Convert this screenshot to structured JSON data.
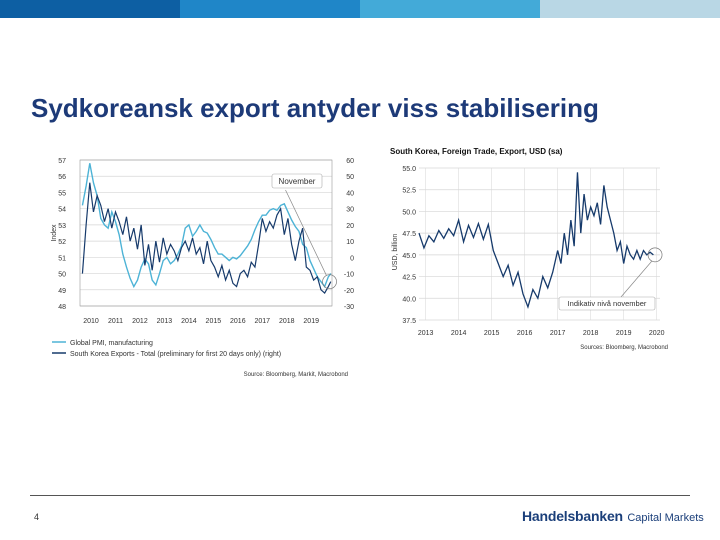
{
  "slide": {
    "title": "Sydkoreansk export antyder viss stabilisering",
    "page_number": "4",
    "logo_main": "Handelsbanken",
    "logo_sub": "Capital Markets",
    "top_band_colors": [
      "#0d5fa3",
      "#1f86c8",
      "#43aad8",
      "#b9d7e5"
    ]
  },
  "chart_data": [
    {
      "type": "line",
      "xlabel": "",
      "ylabel": "Index",
      "y2label": "",
      "x_ticks": [
        "2010",
        "2011",
        "2012",
        "2013",
        "2014",
        "2015",
        "2016",
        "2017",
        "2018",
        "2019"
      ],
      "xlim": [
        2009.6,
        2019.9
      ],
      "ylim": [
        48,
        57
      ],
      "y_ticks": [
        "57",
        "56",
        "55",
        "54",
        "53",
        "52",
        "51",
        "50",
        "49",
        "48"
      ],
      "y2lim": [
        -30,
        60
      ],
      "y2_ticks": [
        "60",
        "50",
        "40",
        "30",
        "20",
        "10",
        "0",
        "-10",
        "-20",
        "-30"
      ],
      "annotation": "November",
      "colors": {
        "pmi": "#4db3d6",
        "exports": "#163a6b",
        "grid": "#d6d6d6"
      },
      "series": [
        {
          "name": "Global PMI, manufacturing",
          "axis": "left",
          "x": [
            2009.7,
            2009.85,
            2010.0,
            2010.15,
            2010.3,
            2010.45,
            2010.6,
            2010.75,
            2010.9,
            2011.05,
            2011.2,
            2011.35,
            2011.5,
            2011.65,
            2011.8,
            2011.95,
            2012.1,
            2012.25,
            2012.4,
            2012.55,
            2012.7,
            2012.85,
            2013.0,
            2013.15,
            2013.3,
            2013.45,
            2013.6,
            2013.75,
            2013.9,
            2014.05,
            2014.2,
            2014.35,
            2014.5,
            2014.65,
            2014.8,
            2014.95,
            2015.1,
            2015.25,
            2015.4,
            2015.55,
            2015.7,
            2015.85,
            2016.0,
            2016.15,
            2016.3,
            2016.45,
            2016.6,
            2016.75,
            2016.9,
            2017.05,
            2017.2,
            2017.35,
            2017.5,
            2017.65,
            2017.8,
            2017.95,
            2018.1,
            2018.25,
            2018.4,
            2018.55,
            2018.7,
            2018.85,
            2019.0,
            2019.15,
            2019.3,
            2019.45,
            2019.6,
            2019.75,
            2019.85
          ],
          "values": [
            54.2,
            55.4,
            56.8,
            55.6,
            54.8,
            53.4,
            53.0,
            52.8,
            53.8,
            53.2,
            52.4,
            51.2,
            50.4,
            49.7,
            49.2,
            49.6,
            50.4,
            50.9,
            50.6,
            49.6,
            49.3,
            50.0,
            50.8,
            51.0,
            50.6,
            50.8,
            51.2,
            51.7,
            52.8,
            53.0,
            52.3,
            52.6,
            53.0,
            52.6,
            52.5,
            52.1,
            51.6,
            51.2,
            51.2,
            51.0,
            50.8,
            51.0,
            50.9,
            51.1,
            51.4,
            51.7,
            52.1,
            52.7,
            53.2,
            53.6,
            53.6,
            53.9,
            54.0,
            53.9,
            54.2,
            54.3,
            53.8,
            53.3,
            52.9,
            52.6,
            51.8,
            51.6,
            50.8,
            50.3,
            49.8,
            49.5,
            49.2,
            49.8,
            50.0
          ]
        },
        {
          "name": "South Korea Exports - Total (preliminary for first 20 days only) (right)",
          "axis": "right",
          "x": [
            2009.7,
            2009.85,
            2010.0,
            2010.15,
            2010.3,
            2010.45,
            2010.6,
            2010.75,
            2010.9,
            2011.05,
            2011.2,
            2011.35,
            2011.5,
            2011.65,
            2011.8,
            2011.95,
            2012.1,
            2012.25,
            2012.4,
            2012.55,
            2012.7,
            2012.85,
            2013.0,
            2013.15,
            2013.3,
            2013.45,
            2013.6,
            2013.75,
            2013.9,
            2014.05,
            2014.2,
            2014.35,
            2014.5,
            2014.65,
            2014.8,
            2014.95,
            2015.1,
            2015.25,
            2015.4,
            2015.55,
            2015.7,
            2015.85,
            2016.0,
            2016.15,
            2016.3,
            2016.45,
            2016.6,
            2016.75,
            2016.9,
            2017.05,
            2017.2,
            2017.35,
            2017.5,
            2017.65,
            2017.8,
            2017.95,
            2018.1,
            2018.25,
            2018.4,
            2018.55,
            2018.7,
            2018.85,
            2019.0,
            2019.15,
            2019.3,
            2019.45,
            2019.6,
            2019.75,
            2019.85
          ],
          "values": [
            -10,
            20,
            46,
            28,
            38,
            32,
            22,
            30,
            18,
            28,
            22,
            14,
            25,
            10,
            18,
            5,
            20,
            -5,
            8,
            -8,
            10,
            -3,
            12,
            2,
            8,
            4,
            -2,
            6,
            10,
            4,
            12,
            2,
            6,
            -4,
            10,
            -2,
            -6,
            -12,
            -5,
            -14,
            -8,
            -16,
            -18,
            -10,
            -8,
            -12,
            -3,
            -6,
            8,
            24,
            16,
            22,
            18,
            26,
            30,
            14,
            24,
            8,
            -2,
            10,
            18,
            -6,
            -8,
            -14,
            -12,
            -20,
            -22,
            -18,
            -15
          ]
        }
      ],
      "legend": "bottom",
      "source": "Source: Bloomberg, Markit, Macrobond"
    },
    {
      "type": "line",
      "title": "South Korea, Foreign Trade, Export, USD (sa)",
      "xlabel": "",
      "ylabel": "USD, billion",
      "x_ticks": [
        "2013",
        "2014",
        "2015",
        "2016",
        "2017",
        "2018",
        "2019",
        "2020"
      ],
      "xlim": [
        2012.8,
        2020.1
      ],
      "ylim": [
        37.5,
        55.0
      ],
      "y_ticks": [
        "55.0",
        "52.5",
        "50.0",
        "47.5",
        "45.0",
        "42.5",
        "40.0",
        "37.5"
      ],
      "annotation": "Indikativ nivå november",
      "colors": {
        "line": "#163a6b",
        "grid": "#d6d6d6"
      },
      "series": [
        {
          "name": "",
          "x": [
            2012.8,
            2012.95,
            2013.1,
            2013.25,
            2013.4,
            2013.55,
            2013.7,
            2013.85,
            2014.0,
            2014.15,
            2014.3,
            2014.45,
            2014.6,
            2014.75,
            2014.9,
            2015.05,
            2015.2,
            2015.35,
            2015.5,
            2015.65,
            2015.8,
            2015.95,
            2016.1,
            2016.25,
            2016.4,
            2016.55,
            2016.7,
            2016.85,
            2017.0,
            2017.1,
            2017.2,
            2017.3,
            2017.4,
            2017.5,
            2017.6,
            2017.7,
            2017.8,
            2017.9,
            2018.0,
            2018.1,
            2018.2,
            2018.3,
            2018.4,
            2018.5,
            2018.6,
            2018.7,
            2018.8,
            2018.9,
            2019.0,
            2019.1,
            2019.2,
            2019.3,
            2019.4,
            2019.5,
            2019.6,
            2019.7,
            2019.8,
            2019.9
          ],
          "values": [
            47.5,
            45.8,
            47.2,
            46.5,
            47.8,
            46.9,
            48.0,
            47.2,
            49.0,
            46.5,
            48.4,
            47.0,
            48.6,
            46.8,
            48.5,
            45.5,
            44.0,
            42.5,
            43.8,
            41.5,
            43.0,
            40.5,
            39.0,
            41.0,
            40.0,
            42.5,
            41.2,
            43.0,
            45.5,
            44.0,
            47.5,
            45.0,
            49.0,
            46.0,
            54.5,
            47.5,
            52.0,
            49.0,
            50.5,
            49.5,
            51.0,
            48.5,
            53.0,
            50.5,
            49.0,
            47.5,
            45.5,
            46.5,
            44.0,
            46.0,
            45.0,
            44.5,
            45.5,
            44.5,
            45.5,
            45.0,
            45.3,
            45.0
          ]
        }
      ],
      "source": "Sources: Bloomberg, Macrobond"
    }
  ]
}
